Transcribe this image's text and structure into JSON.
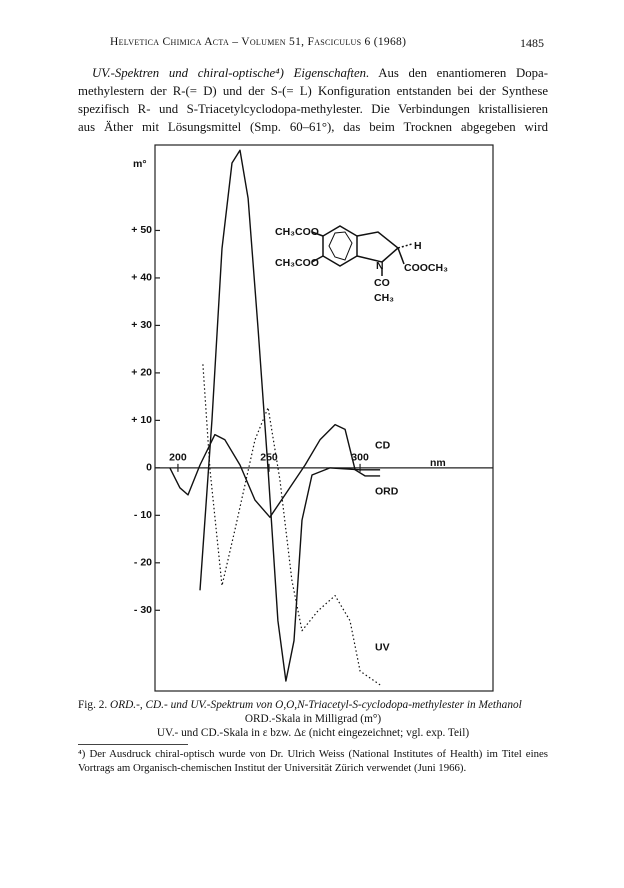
{
  "header": {
    "journal": "Helvetica Chimica Acta – Volumen 51, Fasciculus 6 (1968)",
    "page": "1485"
  },
  "body": {
    "lead_italic": "UV.-Spektren und chiral-optische⁴) Eigenschaften.",
    "lines": [
      "Aus den enantiomeren Dopa-",
      "methylestern der R-(= D) und der S-(= L) Konfiguration entstanden bei der Synthese",
      "spezifisch R- und S-Triacetylcyclodopa-methylester. Die Verbindungen kristallisieren",
      "aus Äther mit Lösungsmittel (Smp. 60–61°), das beim Trocknen abgegeben wird"
    ]
  },
  "figure": {
    "y_unit": "m°",
    "x_unit": "nm",
    "xlim": [
      187.4,
      373
    ],
    "ylim": [
      -47,
      68
    ],
    "xticks": [
      200,
      250,
      300
    ],
    "yticks": [
      {
        "value": 50,
        "label": "+ 50"
      },
      {
        "value": 40,
        "label": "+ 40"
      },
      {
        "value": 30,
        "label": "+ 30"
      },
      {
        "value": 20,
        "label": "+ 20"
      },
      {
        "value": 10,
        "label": "+ 10"
      },
      0,
      {
        "value": -10,
        "label": "- 10"
      },
      {
        "value": -20,
        "label": "- 20"
      },
      {
        "value": -30,
        "label": "- 30"
      }
    ],
    "series": [
      {
        "name": "ORD",
        "style": "solid",
        "x": [
          212.1,
          218.7,
          224.2,
          229.7,
          234.1,
          238.5,
          244,
          249.5,
          254.9,
          259.3,
          263.7,
          268.1,
          273.6,
          283.5,
          300,
          311
        ],
        "values": [
          -25.8,
          10.2,
          46.2,
          64.2,
          66.9,
          56.8,
          29.2,
          -0.4,
          -32.2,
          -44.9,
          -36.4,
          -11,
          -1.5,
          0,
          -0.4,
          -0.4
        ]
      },
      {
        "name": "CD",
        "style": "solid",
        "x": [
          195.6,
          201.1,
          205.5,
          212.1,
          220.3,
          225.8,
          234.1,
          242.3,
          250.5,
          258.8,
          269.8,
          278,
          286.3,
          291.8,
          297.3,
          302.7,
          311
        ],
        "values": [
          0,
          -4.2,
          -5.7,
          0.6,
          7,
          5.9,
          0.6,
          -6.8,
          -10.4,
          -5.7,
          0.6,
          5.9,
          9.1,
          8.1,
          -0.4,
          -1.7,
          -1.7
        ]
      },
      {
        "name": "UV",
        "style": "dotted",
        "x": [
          213.7,
          217.6,
          224.2,
          231.3,
          242.3,
          249.5,
          256,
          262.6,
          268.1,
          276.9,
          286.3,
          294.5,
          300,
          312.1
        ],
        "values": [
          21.8,
          -0.4,
          -24.8,
          -13.1,
          5.9,
          12.7,
          -2.5,
          -23.7,
          -34.3,
          -30.1,
          -26.9,
          -32.2,
          -42.8,
          -46
        ]
      }
    ],
    "structure": {
      "sub1": "CH₃COO",
      "sub2": "CH₃COO",
      "n": "N",
      "h": "H",
      "ester": "COOCH₃",
      "co": "CO",
      "ch3": "CH₃"
    }
  },
  "caption": {
    "lead": "Fig. 2.",
    "title": "ORD.-, CD.- und UV.-Spektrum von O,O,N-Triacetyl-S-cyclodopa-methylester in Methanol",
    "line2": "ORD.-Skala in Milligrad (m°)",
    "line3": "UV.- und CD.-Skala in ε bzw. Δε (nicht eingezeichnet; vgl. exp. Teil)"
  },
  "footnote": {
    "mark": "⁴)",
    "text": "Der Ausdruck chiral-optisch wurde von Dr. Ulrich Weiss (National Institutes of Health) im Titel eines Vortrags am Organisch-chemischen Institut der Universität Zürich verwendet (Juni 1966)."
  }
}
